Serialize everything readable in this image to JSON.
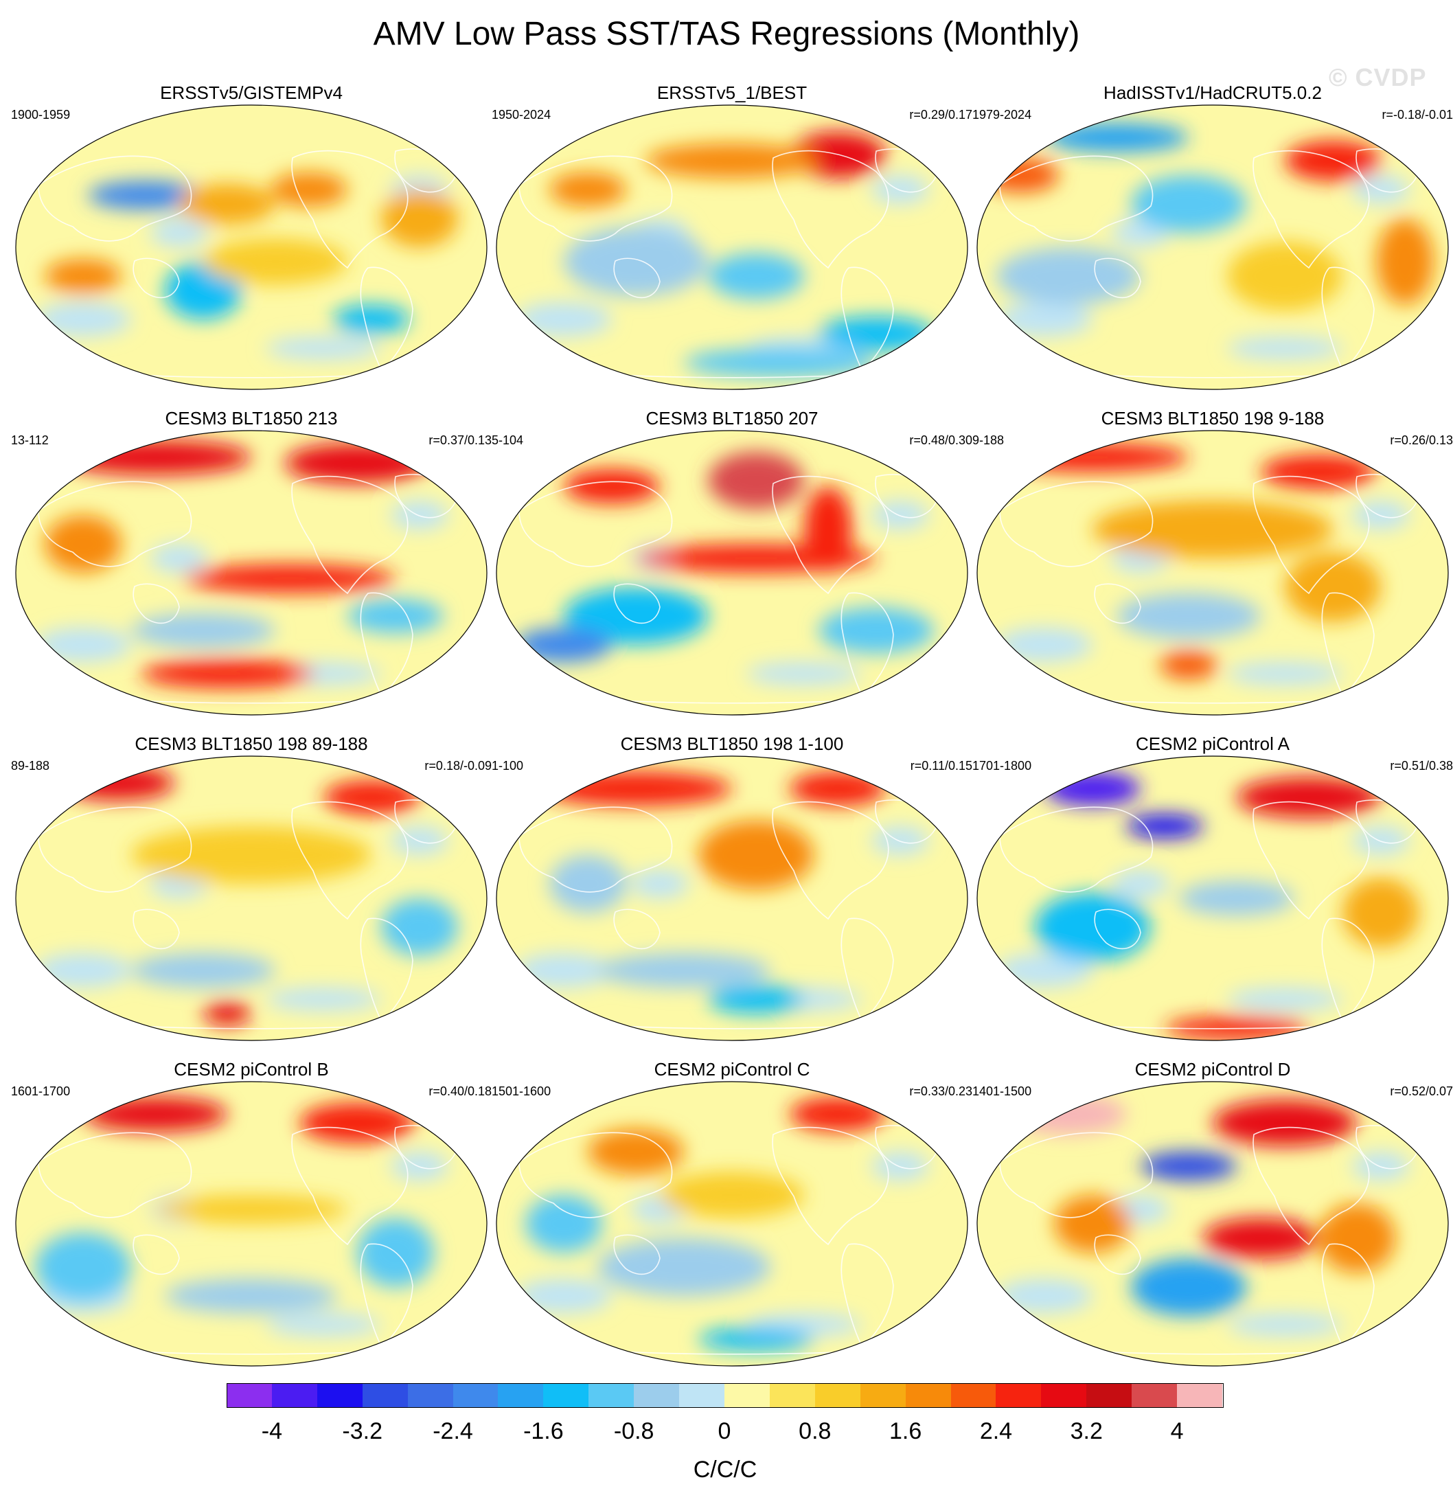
{
  "title": "AMV Low Pass SST/TAS Regressions (Monthly)",
  "watermark": "© CVDP",
  "panels": [
    {
      "title": "ERSSTv5/GISTEMPv4",
      "period": "1900-1959",
      "corr": ""
    },
    {
      "title": "ERSSTv5_1/BEST",
      "period": "1950-2024",
      "corr": "r=0.29/0.17"
    },
    {
      "title": "HadISSTv1/HadCRUT5.0.2",
      "period": "1979-2024",
      "corr": "r=-0.18/-0.01"
    },
    {
      "title": "CESM3 BLT1850 213",
      "period": "13-112",
      "corr": "r=0.37/0.13"
    },
    {
      "title": "CESM3 BLT1850 207",
      "period": "5-104",
      "corr": "r=0.48/0.30"
    },
    {
      "title": "CESM3 BLT1850 198 9-188",
      "period": "9-188",
      "corr": "r=0.26/0.13"
    },
    {
      "title": "CESM3 BLT1850 198 89-188",
      "period": "89-188",
      "corr": "r=0.18/-0.09"
    },
    {
      "title": "CESM3 BLT1850 198 1-100",
      "period": "1-100",
      "corr": "r=0.11/0.15"
    },
    {
      "title": "CESM2 piControl A",
      "period": "1701-1800",
      "corr": "r=0.51/0.38"
    },
    {
      "title": "CESM2 piControl B",
      "period": "1601-1700",
      "corr": "r=0.40/0.18"
    },
    {
      "title": "CESM2 piControl C",
      "period": "1501-1600",
      "corr": "r=0.33/0.23"
    },
    {
      "title": "CESM2 piControl D",
      "period": "1401-1500",
      "corr": "r=0.52/0.07"
    }
  ],
  "colorbar": {
    "units": "C/C/C",
    "labels": [
      "-4",
      "-3.2",
      "-2.4",
      "-1.6",
      "-0.8",
      "0",
      "0.8",
      "1.6",
      "2.4",
      "3.2",
      "4"
    ],
    "colors": [
      "#8c2eef",
      "#4b1cf2",
      "#1c0ff0",
      "#2e4ee4",
      "#3c6ee6",
      "#3f89ec",
      "#27a2f2",
      "#10bef7",
      "#5ac9f4",
      "#9ccdec",
      "#bfe4f5",
      "#fdf9a6",
      "#fbe45a",
      "#f9cd2a",
      "#f7ab12",
      "#f78a0a",
      "#f75a0b",
      "#f6230f",
      "#e60a12",
      "#c60d12",
      "#d94a4e",
      "#f7b6b8"
    ]
  },
  "colors": {
    "zero_pos": "#fdf9a6",
    "zero_neg": "#bfe4f5",
    "coast": "#ffffff",
    "map_border": "#000000"
  }
}
